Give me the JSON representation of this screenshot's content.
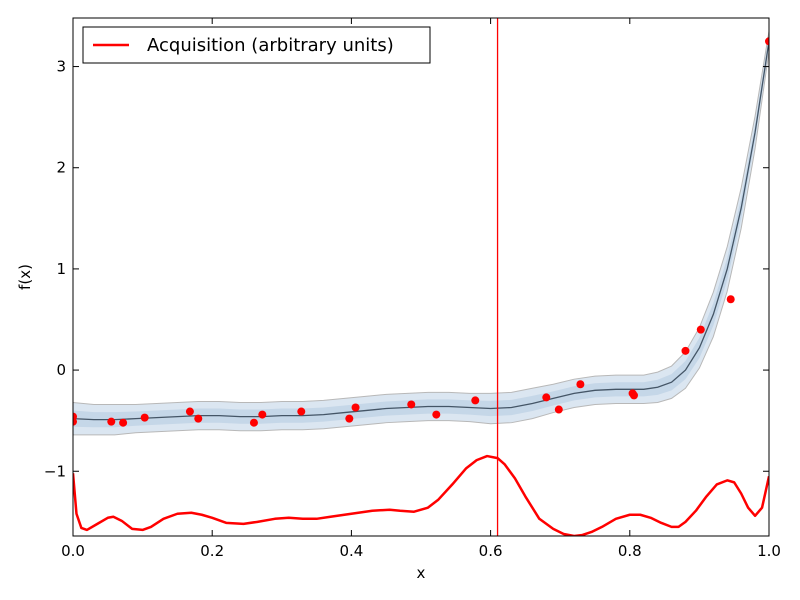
{
  "chart_data": {
    "type": "line",
    "title": "",
    "xlabel": "x",
    "ylabel": "f(x)",
    "xlim": [
      0.0,
      1.0
    ],
    "ylim": [
      -1.64,
      3.48
    ],
    "xticks": [
      0.0,
      0.2,
      0.4,
      0.6,
      0.8,
      1.0
    ],
    "xtick_labels": [
      "0.0",
      "0.2",
      "0.4",
      "0.6",
      "0.8",
      "1.0"
    ],
    "yticks": [
      -1,
      0,
      1,
      2,
      3
    ],
    "ytick_labels": [
      "−1",
      "0",
      "1",
      "2",
      "3"
    ],
    "grid": false,
    "legend": {
      "placement": "top-left",
      "entries": [
        "Acquisition (arbitrary units)"
      ]
    },
    "colors": {
      "acquisition": "#ff0000",
      "mean": "#445566",
      "band_edge": "#b8b8b8",
      "band_fill": "#b0c8e0",
      "points": "#ff0000"
    },
    "observations": {
      "x": [
        0.0,
        0.0,
        0.055,
        0.072,
        0.103,
        0.168,
        0.18,
        0.26,
        0.272,
        0.328,
        0.397,
        0.406,
        0.486,
        0.522,
        0.578,
        0.68,
        0.698,
        0.729,
        0.804,
        0.806,
        0.88,
        0.902,
        0.945,
        1.0
      ],
      "y": [
        -0.46,
        -0.51,
        -0.51,
        -0.52,
        -0.47,
        -0.41,
        -0.48,
        -0.52,
        -0.44,
        -0.41,
        -0.48,
        -0.37,
        -0.34,
        -0.44,
        -0.3,
        -0.27,
        -0.39,
        -0.14,
        -0.23,
        -0.25,
        0.19,
        0.4,
        0.7,
        3.25
      ]
    },
    "series": [
      {
        "name": "Acquisition (arbitrary units)",
        "x": [
          0.0,
          0.005,
          0.012,
          0.02,
          0.035,
          0.05,
          0.058,
          0.07,
          0.085,
          0.1,
          0.112,
          0.13,
          0.15,
          0.17,
          0.185,
          0.2,
          0.22,
          0.245,
          0.265,
          0.29,
          0.31,
          0.33,
          0.35,
          0.37,
          0.39,
          0.41,
          0.43,
          0.455,
          0.47,
          0.49,
          0.51,
          0.525,
          0.545,
          0.565,
          0.58,
          0.595,
          0.61,
          0.62,
          0.635,
          0.65,
          0.67,
          0.69,
          0.705,
          0.72,
          0.732,
          0.745,
          0.76,
          0.78,
          0.8,
          0.815,
          0.83,
          0.845,
          0.86,
          0.87,
          0.88,
          0.895,
          0.91,
          0.925,
          0.94,
          0.95,
          0.96,
          0.97,
          0.98,
          0.99,
          1.0
        ],
        "y": [
          -1.02,
          -1.42,
          -1.56,
          -1.58,
          -1.52,
          -1.46,
          -1.45,
          -1.49,
          -1.57,
          -1.58,
          -1.55,
          -1.47,
          -1.42,
          -1.41,
          -1.43,
          -1.46,
          -1.51,
          -1.52,
          -1.5,
          -1.47,
          -1.46,
          -1.47,
          -1.47,
          -1.45,
          -1.43,
          -1.41,
          -1.39,
          -1.38,
          -1.39,
          -1.4,
          -1.36,
          -1.28,
          -1.13,
          -0.97,
          -0.89,
          -0.85,
          -0.87,
          -0.93,
          -1.07,
          -1.25,
          -1.47,
          -1.57,
          -1.62,
          -1.64,
          -1.63,
          -1.6,
          -1.55,
          -1.47,
          -1.43,
          -1.43,
          -1.46,
          -1.51,
          -1.55,
          -1.55,
          -1.5,
          -1.39,
          -1.25,
          -1.13,
          -1.09,
          -1.11,
          -1.22,
          -1.36,
          -1.44,
          -1.36,
          -1.05
        ]
      },
      {
        "x": [
          0.0,
          0.03,
          0.06,
          0.09,
          0.12,
          0.15,
          0.18,
          0.21,
          0.24,
          0.27,
          0.3,
          0.33,
          0.36,
          0.39,
          0.42,
          0.45,
          0.48,
          0.51,
          0.54,
          0.57,
          0.6,
          0.63,
          0.66,
          0.69,
          0.72,
          0.75,
          0.78,
          0.8,
          0.82,
          0.84,
          0.86,
          0.88,
          0.9,
          0.92,
          0.94,
          0.96,
          0.98,
          1.0
        ],
        "y": [
          -0.48,
          -0.49,
          -0.49,
          -0.48,
          -0.47,
          -0.46,
          -0.45,
          -0.45,
          -0.46,
          -0.46,
          -0.45,
          -0.45,
          -0.44,
          -0.42,
          -0.4,
          -0.38,
          -0.37,
          -0.36,
          -0.36,
          -0.37,
          -0.38,
          -0.37,
          -0.33,
          -0.28,
          -0.23,
          -0.2,
          -0.19,
          -0.19,
          -0.19,
          -0.17,
          -0.12,
          0.0,
          0.22,
          0.55,
          1.0,
          1.6,
          2.35,
          3.25
        ]
      }
    ],
    "band_halfwidth": [
      0.16,
      0.15,
      0.15,
      0.14,
      0.14,
      0.14,
      0.14,
      0.14,
      0.14,
      0.14,
      0.14,
      0.14,
      0.14,
      0.14,
      0.14,
      0.14,
      0.14,
      0.14,
      0.14,
      0.14,
      0.15,
      0.15,
      0.15,
      0.14,
      0.14,
      0.14,
      0.14,
      0.14,
      0.14,
      0.15,
      0.16,
      0.18,
      0.2,
      0.22,
      0.22,
      0.2,
      0.16,
      0.1
    ],
    "vline_x": 0.61
  }
}
